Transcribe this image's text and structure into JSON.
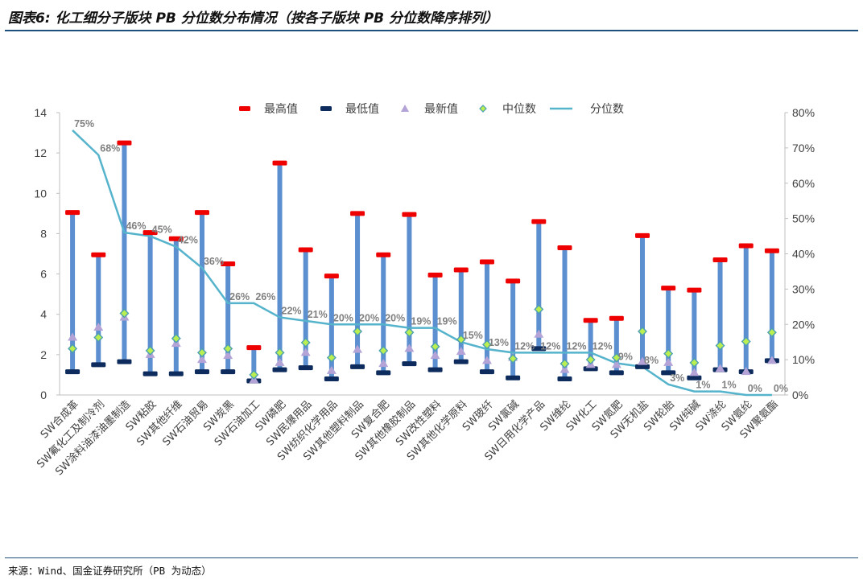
{
  "figure_title": "图表6: 化工细分子版块 PB 分位数分布情况（按各子版块 PB 分位数降序排列）",
  "source_note": "来源：Wind、国金证券研究所（PB 为动态）",
  "colors": {
    "bar": "#5b8fd0",
    "max": "#ee0000",
    "min": "#0d2b5c",
    "latest": "#b3a3d6",
    "median": "#b9ef50",
    "median_edge": "#4c9fb2",
    "line": "#55b3cc"
  },
  "chart_data": {
    "type": "range-bar-with-markers",
    "legend": [
      "最高值",
      "最低值",
      "最新值",
      "中位数",
      "分位数"
    ],
    "legend_position": "top",
    "categories": [
      "SW合成革",
      "SW氟化工及制冷剂",
      "SW涂料油漆油墨制造",
      "SW粘胶",
      "SW其他纤维",
      "SW石油贸易",
      "SW炭黑",
      "SW石油加工",
      "SW磷肥",
      "SW民爆用品",
      "SW纺织化学用品",
      "SW其他塑料制品",
      "SW复合肥",
      "SW其他橡胶制品",
      "SW改性塑料",
      "SW其他化学原料",
      "SW玻纤",
      "SW氯碱",
      "SW日用化学产品",
      "SW维纶",
      "SW化工",
      "SW氮肥",
      "SW无机盐",
      "SW轮胎",
      "SW纯碱",
      "SW涤纶",
      "SW氨纶",
      "SW聚氨酯"
    ],
    "series": [
      {
        "name": "最高值",
        "values": [
          9.05,
          6.95,
          12.5,
          8.05,
          7.75,
          9.05,
          6.5,
          2.35,
          11.5,
          7.2,
          5.9,
          9.0,
          6.95,
          8.95,
          5.95,
          6.2,
          6.6,
          5.65,
          8.6,
          7.3,
          3.7,
          3.8,
          7.9,
          5.3,
          5.2,
          6.7,
          7.4,
          7.15
        ]
      },
      {
        "name": "最低值",
        "values": [
          1.15,
          1.5,
          1.65,
          1.05,
          1.05,
          1.15,
          1.15,
          0.7,
          1.25,
          1.35,
          0.8,
          1.4,
          1.1,
          1.55,
          1.25,
          1.65,
          1.15,
          0.85,
          2.3,
          0.8,
          1.3,
          1.1,
          1.4,
          1.1,
          0.85,
          1.25,
          1.15,
          1.7
        ]
      },
      {
        "name": "最新值",
        "values": [
          2.85,
          3.35,
          3.85,
          2.0,
          2.55,
          1.75,
          1.95,
          0.75,
          1.6,
          2.1,
          1.2,
          2.25,
          1.55,
          2.3,
          1.95,
          2.15,
          1.7,
          1.85,
          3.0,
          1.25,
          1.5,
          1.5,
          1.65,
          1.6,
          1.1,
          1.3,
          1.15,
          1.7
        ]
      },
      {
        "name": "中位数",
        "values": [
          2.3,
          2.85,
          4.05,
          2.2,
          2.8,
          2.1,
          2.3,
          1.0,
          2.1,
          2.6,
          1.85,
          3.15,
          2.2,
          3.1,
          2.4,
          2.75,
          2.5,
          1.8,
          4.25,
          1.55,
          1.75,
          1.85,
          3.15,
          2.05,
          1.6,
          2.45,
          2.65,
          3.1
        ]
      },
      {
        "name": "分位数",
        "axis": "right",
        "values": [
          0.75,
          0.68,
          0.46,
          0.45,
          0.42,
          0.36,
          0.26,
          0.26,
          0.22,
          0.21,
          0.2,
          0.2,
          0.2,
          0.19,
          0.19,
          0.15,
          0.13,
          0.12,
          0.12,
          0.12,
          0.12,
          0.09,
          0.08,
          0.03,
          0.01,
          0.01,
          0.0,
          0.0
        ],
        "labels": [
          "75%",
          "68%",
          "46%",
          "45%",
          "42%",
          "36%",
          "26%",
          "26%",
          "22%",
          "21%",
          "20%",
          "20%",
          "20%",
          "19%",
          "19%",
          "15%",
          "13%",
          "12%",
          "12%",
          "12%",
          "12%",
          "9%",
          "8%",
          "3%",
          "1%",
          "1%",
          "0%",
          "0%"
        ]
      }
    ],
    "ylim_left": [
      0,
      14
    ],
    "yticks_left": [
      "0",
      "2",
      "4",
      "6",
      "8",
      "10",
      "12",
      "14"
    ],
    "ylim_right": [
      0,
      0.8
    ],
    "yticks_right": [
      "0%",
      "10%",
      "20%",
      "30%",
      "40%",
      "50%",
      "60%",
      "70%",
      "80%"
    ]
  }
}
